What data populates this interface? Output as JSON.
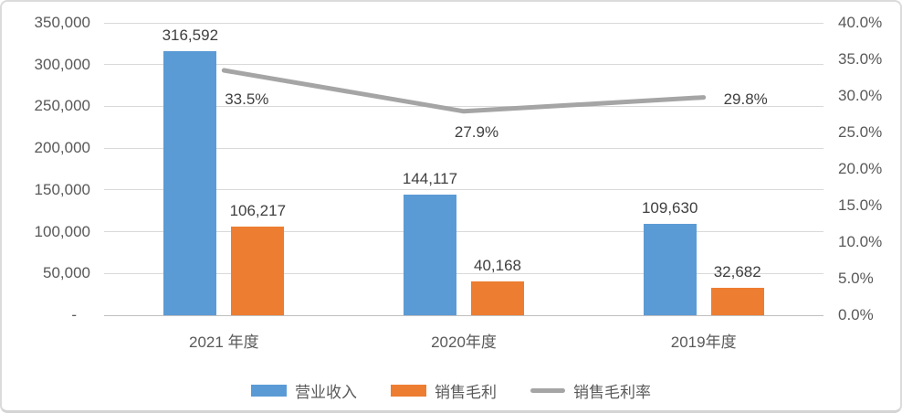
{
  "chart_data": {
    "type": "combo",
    "title": "",
    "categories": [
      "2021 年度",
      "2020年度",
      "2019年度"
    ],
    "category_keys": [
      "2021",
      "2020",
      "2019"
    ],
    "series": [
      {
        "key": "revenue",
        "name": "营业收入",
        "type": "bar",
        "axis": "left",
        "color": "#5B9BD5",
        "values": [
          316592,
          144117,
          109630
        ],
        "labels": [
          "316,592",
          "144,117",
          "109,630"
        ]
      },
      {
        "key": "gross-profit",
        "name": "销售毛利",
        "type": "bar",
        "axis": "left",
        "color": "#ED7D31",
        "values": [
          106217,
          40168,
          32682
        ],
        "labels": [
          "106,217",
          "40,168",
          "32,682"
        ]
      },
      {
        "key": "gross-margin",
        "name": "销售毛利率",
        "type": "line",
        "axis": "right",
        "color": "#A5A5A5",
        "values": [
          33.5,
          27.9,
          29.8
        ],
        "labels": [
          "33.5%",
          "27.9%",
          "29.8%"
        ],
        "label_positions": [
          "below",
          "below",
          "right"
        ]
      }
    ],
    "left_axis": {
      "min": 0,
      "max": 350000,
      "step": 50000,
      "ticks": [
        "350,000",
        "300,000",
        "250,000",
        "200,000",
        "150,000",
        "100,000",
        "50,000",
        "-"
      ]
    },
    "right_axis": {
      "min": 0,
      "max": 40,
      "step": 5,
      "ticks": [
        "40.0%",
        "35.0%",
        "30.0%",
        "25.0%",
        "20.0%",
        "15.0%",
        "10.0%",
        "5.0%",
        "0.0%"
      ]
    },
    "grid": true,
    "legend_position": "bottom"
  },
  "colors": {
    "grid": "#D9D9D9",
    "baseline": "#BFBFBF",
    "axis_text": "#595959",
    "label_text": "#3F3F3F",
    "frame_border": "#DBDBDB"
  }
}
